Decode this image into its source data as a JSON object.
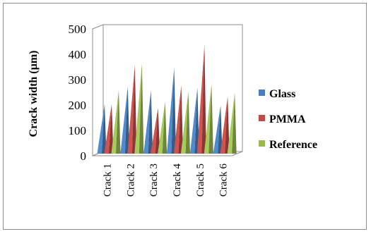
{
  "chart_data": {
    "type": "bar",
    "subtype": "3d-pyramid-column",
    "title": "",
    "xlabel": "",
    "ylabel": "Crack width (µm)",
    "ylim": [
      0,
      500
    ],
    "yticks": [
      0,
      100,
      200,
      300,
      400,
      500
    ],
    "grid": false,
    "legend_position": "right",
    "categories": [
      "Crack 1",
      "Crack 2",
      "Crack 3",
      "Crack 4",
      "Crack 5",
      "Crack 6"
    ],
    "series": [
      {
        "name": "Glass",
        "color": "#4a7ebb",
        "values": [
          195,
          265,
          250,
          340,
          260,
          190
        ]
      },
      {
        "name": "PMMA",
        "color": "#be4b48",
        "values": [
          195,
          350,
          180,
          270,
          430,
          225
        ]
      },
      {
        "name": "Reference",
        "color": "#98b954",
        "values": [
          250,
          355,
          205,
          245,
          275,
          240
        ]
      }
    ]
  }
}
